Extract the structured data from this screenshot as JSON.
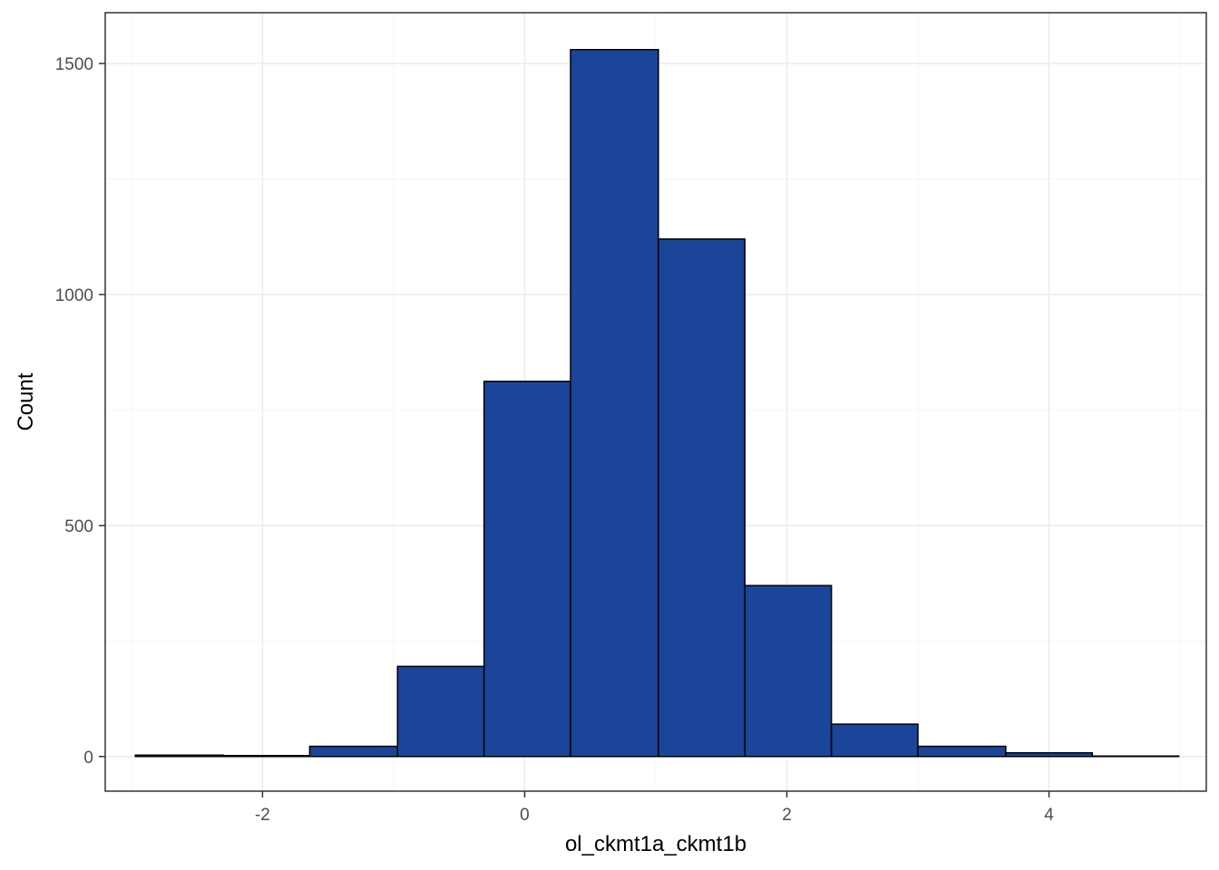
{
  "chart_data": {
    "type": "bar",
    "subtype": "histogram",
    "title": "",
    "xlabel": "ol_ckmt1a_ckmt1b",
    "ylabel": "Count",
    "xlim": [
      -3.2,
      5.2
    ],
    "ylim": [
      -75,
      1610
    ],
    "x_ticks": [
      -2,
      0,
      2,
      4
    ],
    "x_tick_labels": [
      "-2",
      "0",
      "2",
      "4"
    ],
    "y_ticks": [
      0,
      500,
      1000,
      1500
    ],
    "y_tick_labels": [
      "0",
      "500",
      "1000",
      "1500"
    ],
    "bins": [
      {
        "x0": -2.97,
        "x1": -2.3,
        "count": 3
      },
      {
        "x0": -2.3,
        "x1": -1.64,
        "count": 2
      },
      {
        "x0": -1.64,
        "x1": -0.97,
        "count": 22
      },
      {
        "x0": -0.97,
        "x1": -0.31,
        "count": 195
      },
      {
        "x0": -0.31,
        "x1": 0.35,
        "count": 812
      },
      {
        "x0": 0.35,
        "x1": 1.02,
        "count": 1530
      },
      {
        "x0": 1.02,
        "x1": 1.68,
        "count": 1120
      },
      {
        "x0": 1.68,
        "x1": 2.34,
        "count": 370
      },
      {
        "x0": 2.34,
        "x1": 3.0,
        "count": 70
      },
      {
        "x0": 3.0,
        "x1": 3.67,
        "count": 22
      },
      {
        "x0": 3.67,
        "x1": 4.33,
        "count": 8
      },
      {
        "x0": 4.33,
        "x1": 4.99,
        "count": 1
      }
    ],
    "grid": true,
    "legend": "none",
    "colors": {
      "bar_fill": "#1a4599",
      "bar_stroke": "#000000",
      "panel_background": "#ffffff",
      "grid_major": "#ebebeb",
      "grid_minor": "#f5f5f5",
      "panel_border": "#333333"
    }
  }
}
